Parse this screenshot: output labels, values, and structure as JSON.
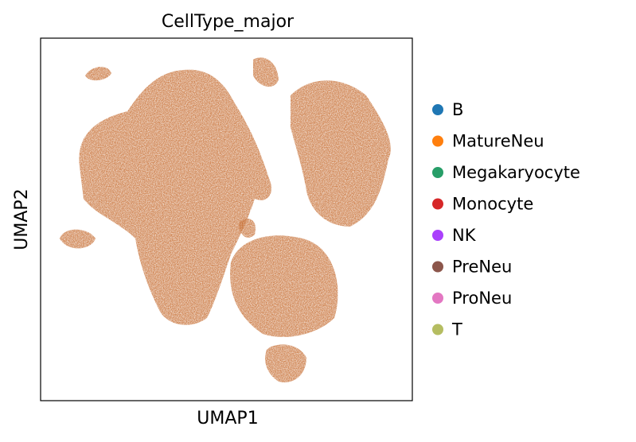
{
  "chart_data": {
    "type": "scatter",
    "title": "CellType_major",
    "x_label": "UMAP1",
    "y_label": "UMAP2",
    "series": [
      {
        "name": "B",
        "color": "#1f77b4"
      },
      {
        "name": "MatureNeu",
        "color": "#ff7f0e"
      },
      {
        "name": "Megakaryocyte",
        "color": "#279e68"
      },
      {
        "name": "Monocyte",
        "color": "#d62728"
      },
      {
        "name": "NK",
        "color": "#aa40fc"
      },
      {
        "name": "PreNeu",
        "color": "#8c564b"
      },
      {
        "name": "ProNeu",
        "color": "#e377c2"
      },
      {
        "name": "T",
        "color": "#b5bd61"
      }
    ]
  }
}
